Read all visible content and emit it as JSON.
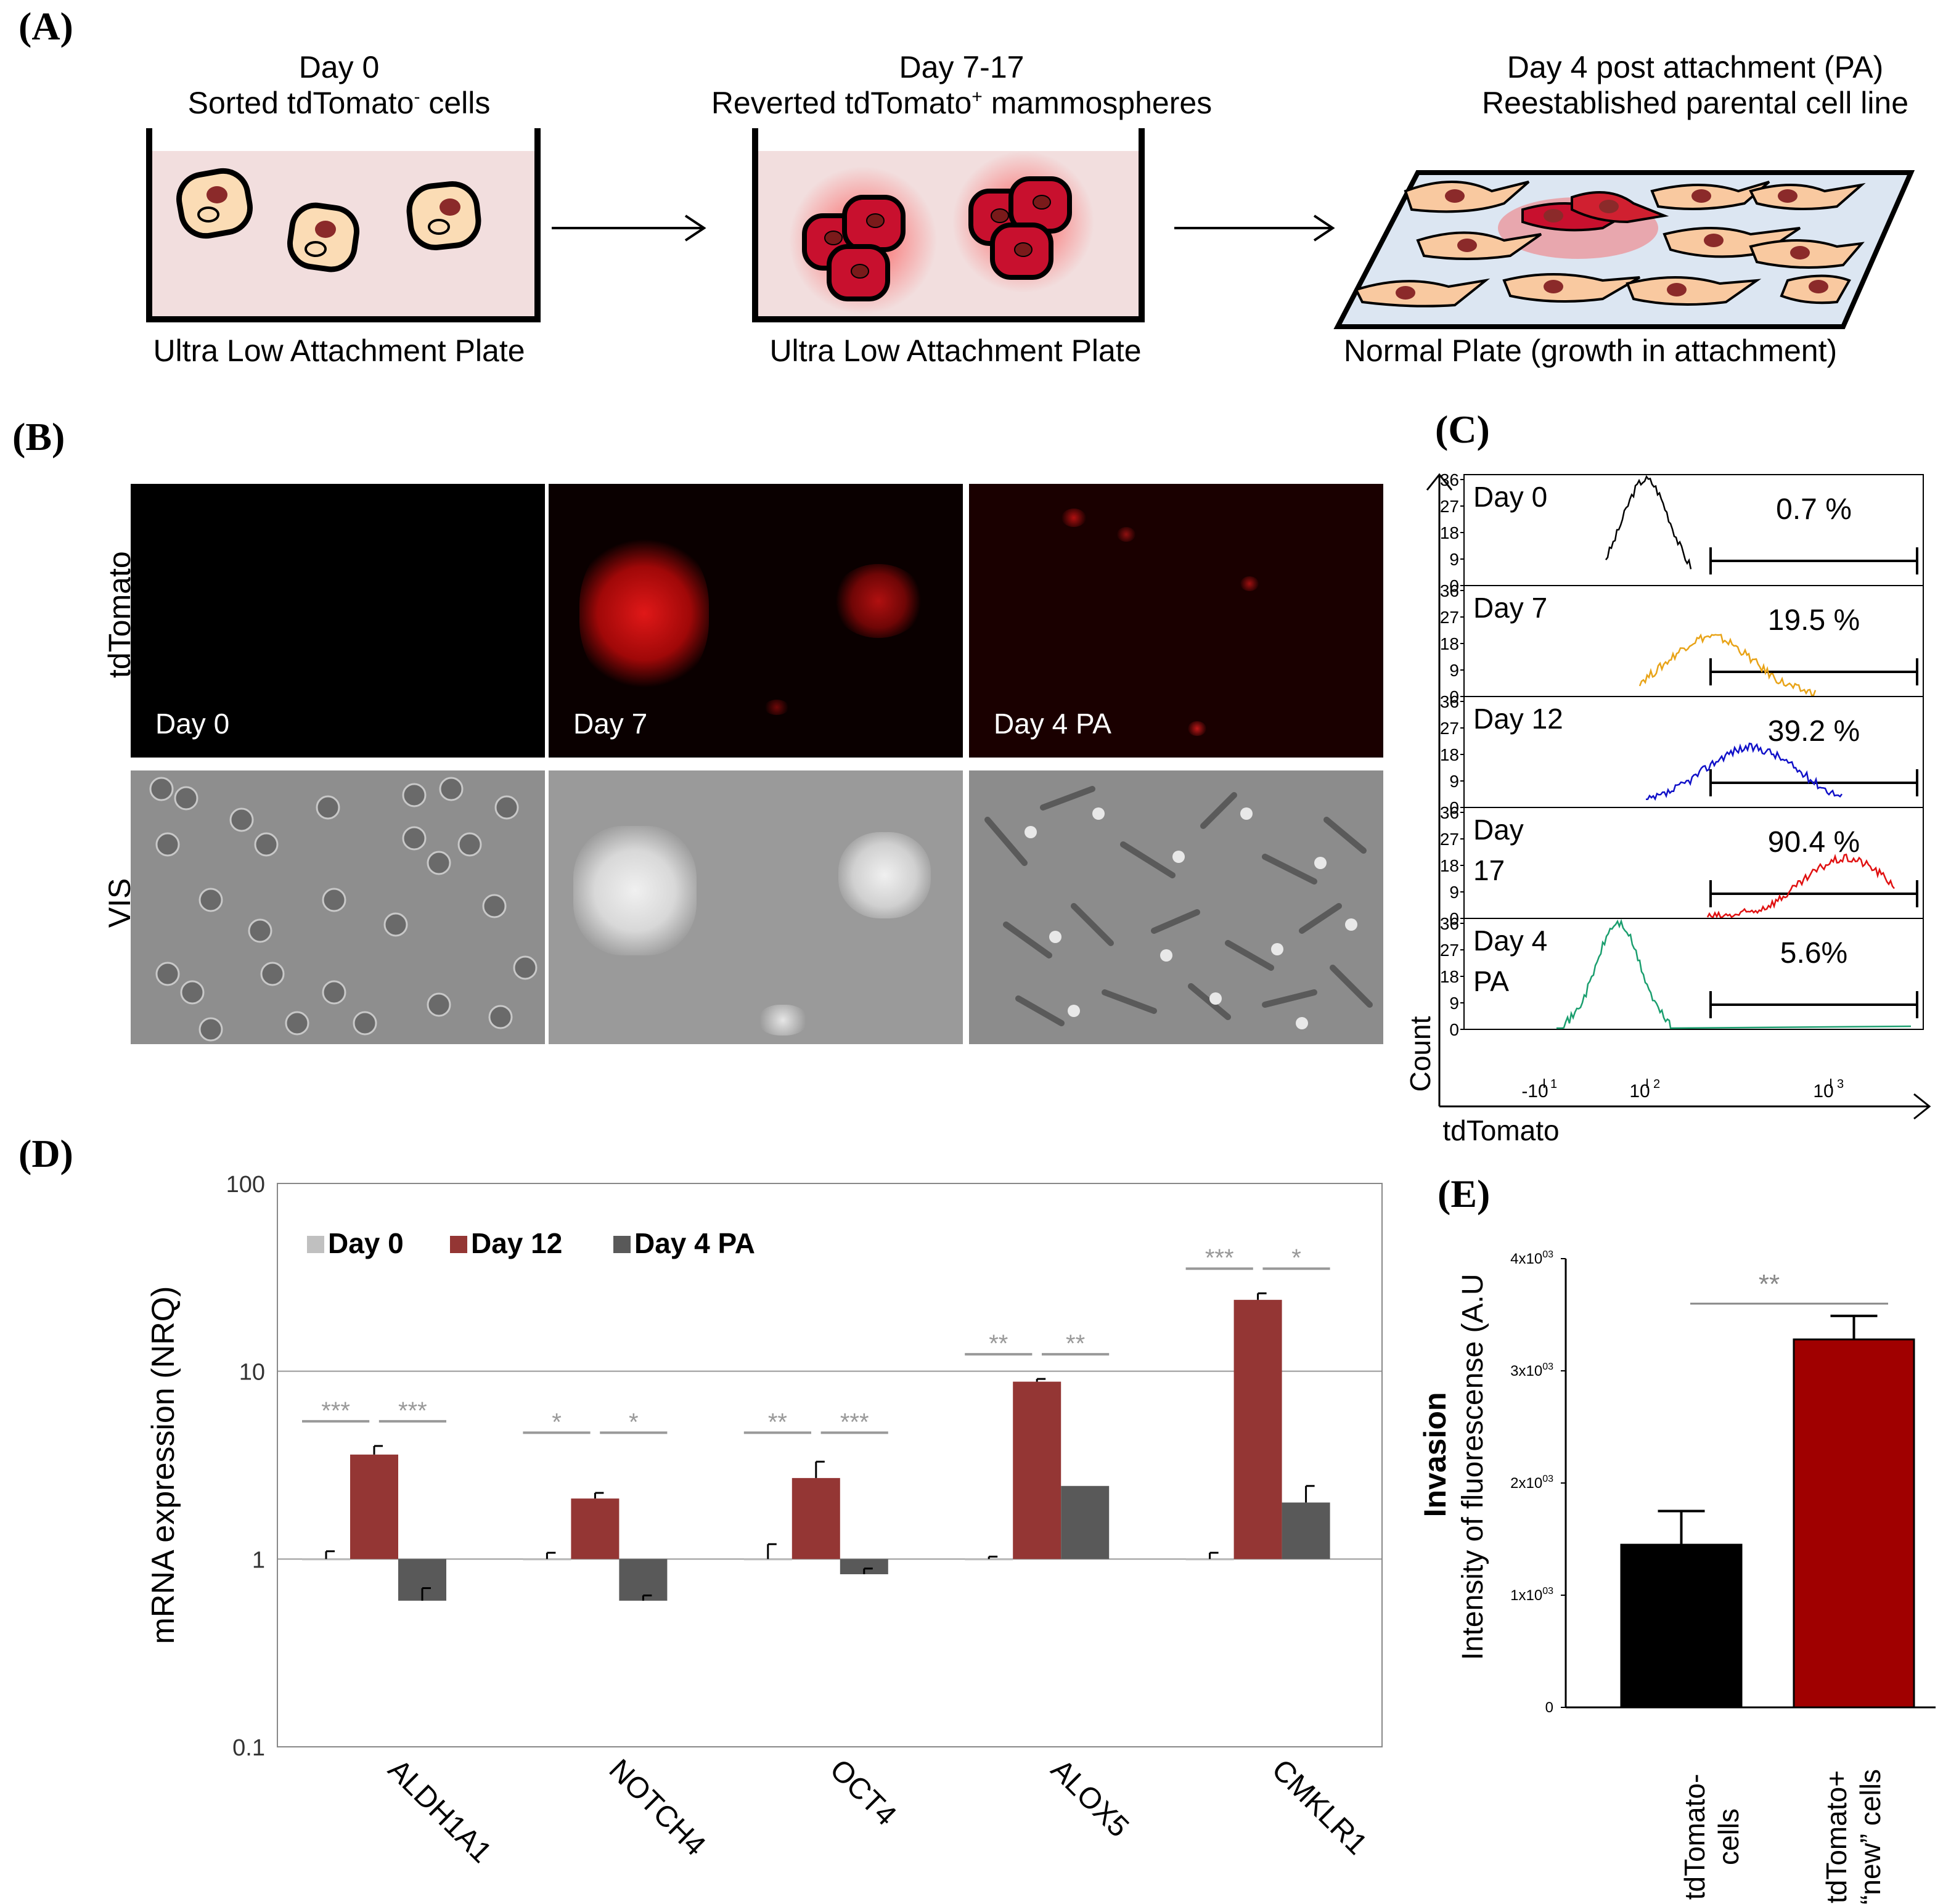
{
  "panelA": {
    "label": "(A)",
    "stage1": {
      "title1": "Day 0",
      "title2": "Sorted tdTomato",
      "sup": "-",
      "title3": "cells",
      "plate": "Ultra Low Attachment Plate"
    },
    "stage2": {
      "title1": "Day 7-17",
      "title2": "Reverted tdTomato",
      "sup": "+",
      "title3": "mammospheres",
      "plate": "Ultra Low Attachment Plate"
    },
    "stage3": {
      "title1": "Day 4 post attachment (PA)",
      "title2": "Reestablished parental cell line",
      "plate": "Normal Plate (growth in attachment)"
    }
  },
  "panelB": {
    "label": "(B)",
    "row_labels": [
      "tdTomato",
      "VIS"
    ],
    "columns": [
      "Day 0",
      "Day 7",
      "Day 4 PA"
    ]
  },
  "panelC": {
    "label": "(C)",
    "ylabel": "Count",
    "xlabel": "tdTomato",
    "yticks": [
      "36",
      "27",
      "18",
      "9",
      "0"
    ],
    "xticks": [
      "-10",
      "10",
      "10"
    ],
    "xtick_exps": [
      "1",
      "2",
      "3"
    ],
    "histograms": [
      {
        "label": "Day 0",
        "label2": "",
        "percent": "0.7 %",
        "color": "#000000"
      },
      {
        "label": "Day 7",
        "label2": "",
        "percent": "19.5 %",
        "color": "#e8a317"
      },
      {
        "label": "Day 12",
        "label2": "",
        "percent": "39.2 %",
        "color": "#1010c8"
      },
      {
        "label": "Day",
        "label2": "17",
        "percent": "90.4 %",
        "color": "#e01010"
      },
      {
        "label": "Day 4",
        "label2": "PA",
        "percent": "5.6%",
        "color": "#1a9e6e"
      }
    ]
  },
  "panelD": {
    "label": "(D)",
    "ylabel": "mRNA expression (NRQ)",
    "yticks": [
      "100",
      "10",
      "1",
      "0.1"
    ],
    "legend": [
      "Day 0",
      "Day 12",
      "Day 4 PA"
    ],
    "significance": [
      [
        "***",
        "***"
      ],
      [
        "*",
        "*"
      ],
      [
        "**",
        "***"
      ],
      [
        "**",
        "**"
      ],
      [
        "***",
        "*"
      ]
    ]
  },
  "panelE": {
    "label": "(E)",
    "ylabel_bold": "Invasion",
    "ylabel": "Intensity of fluorescense (A.U",
    "ytick_bases": [
      "4x10",
      "3x10",
      "2x10",
      "1x10",
      "0"
    ],
    "ytick_exps": [
      "03",
      "03",
      "03",
      "03",
      ""
    ],
    "categories": [
      [
        "tdTomato-",
        "cells"
      ],
      [
        "tdTomato+",
        "“new” cells"
      ]
    ],
    "significance": "**"
  },
  "chart_data": [
    {
      "type": "bar",
      "title": "",
      "ylabel": "mRNA expression (NRQ)",
      "yscale": "log",
      "ylim": [
        0.1,
        100
      ],
      "categories": [
        "ALDH1A1",
        "NOTCH4",
        "OCT4",
        "ALOX5",
        "CMKLR1"
      ],
      "series": [
        {
          "name": "Day 0",
          "color": "#c0c0c0",
          "values": [
            1.0,
            1.0,
            1.0,
            1.0,
            1.0
          ],
          "errors": [
            0.1,
            0.08,
            0.2,
            0.03,
            0.08
          ]
        },
        {
          "name": "Day 12",
          "color": "#943634",
          "values": [
            3.6,
            2.1,
            2.7,
            8.8,
            24.0
          ],
          "errors": [
            0.4,
            0.15,
            0.6,
            0.3,
            2.0
          ]
        },
        {
          "name": "Day 4 PA",
          "color": "#595959",
          "values": [
            0.6,
            0.6,
            0.83,
            2.45,
            2.0
          ],
          "errors": [
            0.1,
            0.04,
            0.06,
            0.0,
            0.45
          ]
        }
      ],
      "legend_position": "top-left",
      "grid": true
    },
    {
      "type": "bar",
      "title": "",
      "ylabel": "Intensity of fluorescense (A.U",
      "ylim": [
        0,
        4000
      ],
      "categories": [
        "tdTomato- cells",
        "tdTomato+ “new” cells"
      ],
      "values": [
        1450,
        3280
      ],
      "errors": [
        300,
        210
      ],
      "colors": [
        "#000000",
        "#a00000"
      ]
    }
  ]
}
